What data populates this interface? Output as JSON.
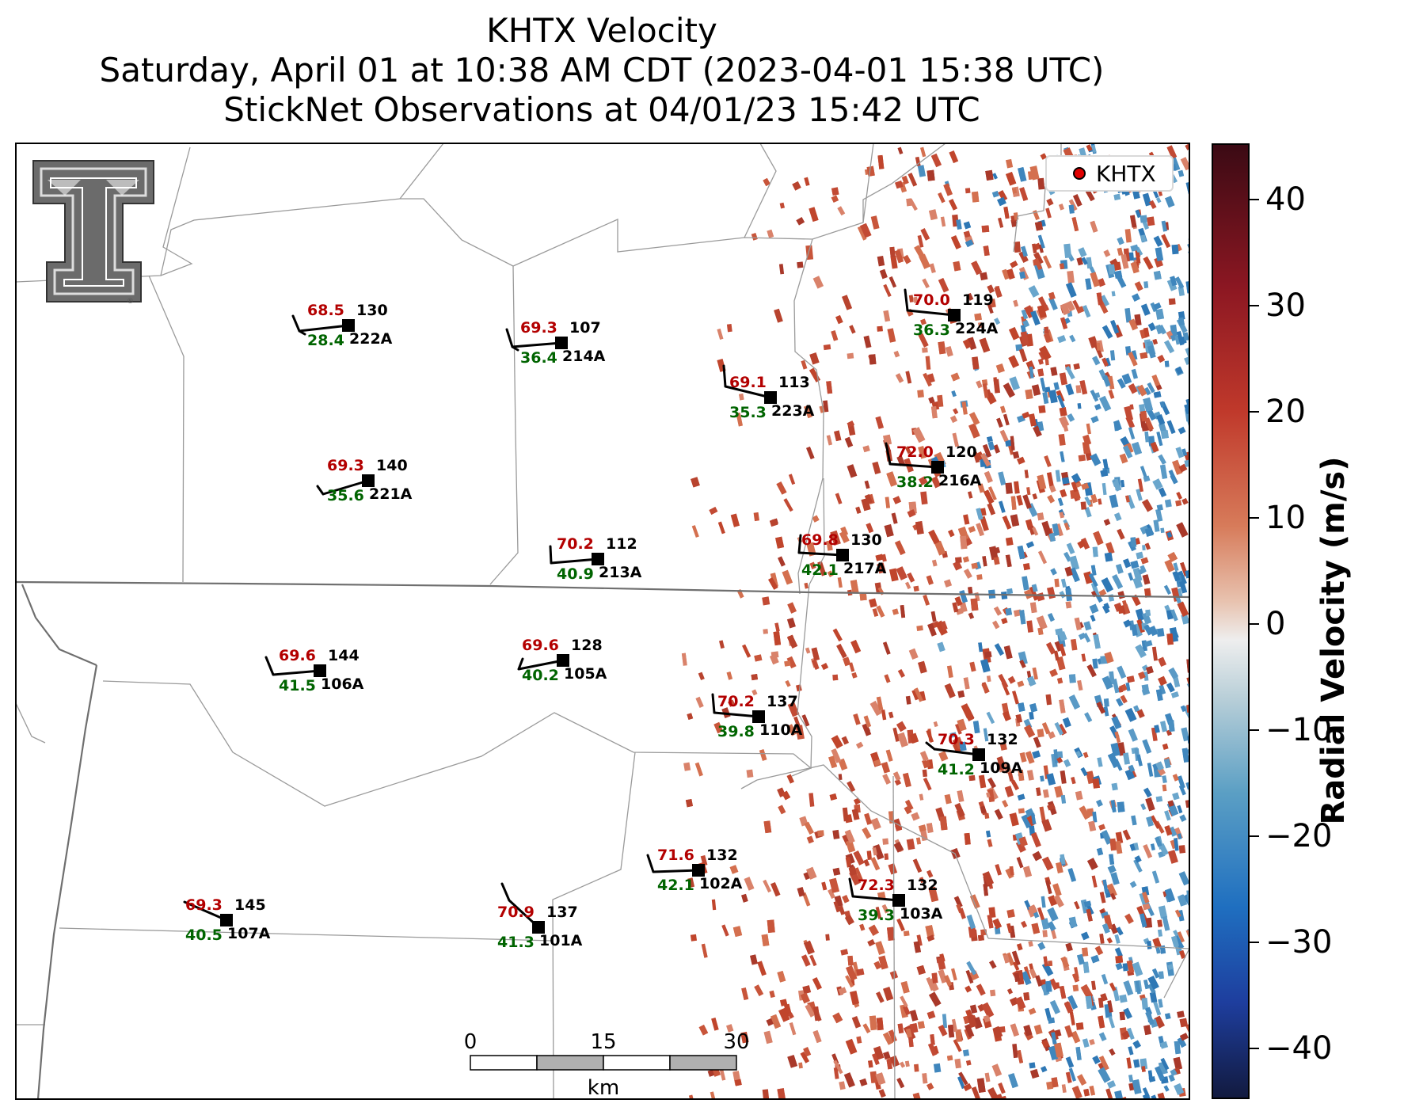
{
  "title": {
    "line1": "KHTX Velocity",
    "line2": "Saturday, April 01 at 10:38 AM CDT (2023-04-01 15:38 UTC)",
    "line3": "StickNet Observations at 04/01/23 15:42 UTC"
  },
  "legend": {
    "label": "KHTX",
    "marker_color": "#e00000"
  },
  "colorbar": {
    "title": "Radial Velocity (m/s)",
    "ticks": [
      "40",
      "30",
      "20",
      "10",
      "0",
      "−10",
      "−20",
      "−30",
      "−40"
    ],
    "range": [
      -45,
      45
    ]
  },
  "scalebar": {
    "labels": [
      "0",
      "15",
      "30"
    ],
    "unit": "km"
  },
  "colors": {
    "temperature": "#b30000",
    "dewpoint": "#006400",
    "station": "#000000"
  },
  "stations": [
    {
      "id": "222A",
      "temp": "68.5",
      "dew": "28.4",
      "pressure": "130"
    },
    {
      "id": "214A",
      "temp": "69.3",
      "dew": "36.4",
      "pressure": "107"
    },
    {
      "id": "224A",
      "temp": "70.0",
      "dew": "36.3",
      "pressure": "119"
    },
    {
      "id": "223A",
      "temp": "69.1",
      "dew": "35.3",
      "pressure": "113"
    },
    {
      "id": "221A",
      "temp": "69.3",
      "dew": "35.6",
      "pressure": "140"
    },
    {
      "id": "216A",
      "temp": "72.0",
      "dew": "38.2",
      "pressure": "120"
    },
    {
      "id": "213A",
      "temp": "70.2",
      "dew": "40.9",
      "pressure": "112"
    },
    {
      "id": "217A",
      "temp": "69.8",
      "dew": "42.1",
      "pressure": "130"
    },
    {
      "id": "106A",
      "temp": "69.6",
      "dew": "41.5",
      "pressure": "144"
    },
    {
      "id": "105A",
      "temp": "69.6",
      "dew": "40.2",
      "pressure": "128"
    },
    {
      "id": "110A",
      "temp": "70.2",
      "dew": "39.8",
      "pressure": "137"
    },
    {
      "id": "109A",
      "temp": "70.3",
      "dew": "41.2",
      "pressure": "132"
    },
    {
      "id": "102A",
      "temp": "71.6",
      "dew": "42.1",
      "pressure": "132"
    },
    {
      "id": "103A",
      "temp": "72.3",
      "dew": "39.3",
      "pressure": "132"
    },
    {
      "id": "107A",
      "temp": "69.3",
      "dew": "40.5",
      "pressure": "145"
    },
    {
      "id": "101A",
      "temp": "70.9",
      "dew": "41.3",
      "pressure": "137"
    }
  ]
}
